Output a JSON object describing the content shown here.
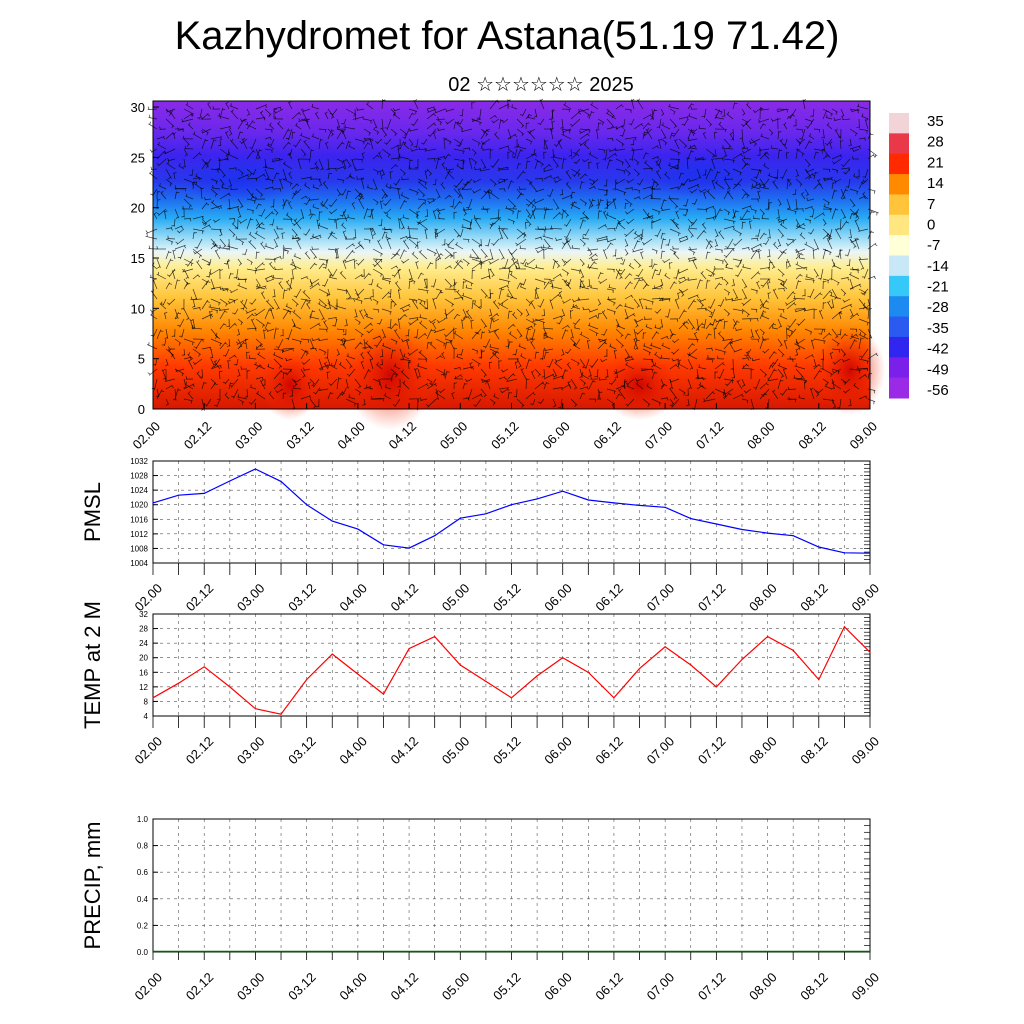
{
  "title": "Kazhydromet for Astana(51.19 71.42)",
  "subtitle": "02 ☆☆☆☆☆☆ 2025",
  "chart_data": [
    {
      "type": "heatmap",
      "description_role": "vertical cross-section of temperature with wind barbs",
      "x_tick_labels": [
        "02.00",
        "02.12",
        "03.00",
        "03.12",
        "04.00",
        "04.12",
        "05.00",
        "05.12",
        "06.00",
        "06.12",
        "07.00",
        "07.12",
        "08.00",
        "08.12",
        "09.00"
      ],
      "y_ticks": [
        0,
        5,
        10,
        15,
        20,
        25,
        30
      ],
      "ylim": [
        0,
        30.6
      ],
      "colorbar_labels": [
        "35",
        "28",
        "21",
        "14",
        "7",
        "0",
        "-7",
        "-14",
        "-21",
        "-28",
        "-35",
        "-42",
        "-49",
        "-56"
      ],
      "colorbar_colors": [
        "#f2d3d8",
        "#e8384a",
        "#ff2a00",
        "#ff8a00",
        "#ffc43a",
        "#ffe680",
        "#ffffd8",
        "#c8e8f8",
        "#35c8f8",
        "#1c8af0",
        "#2a5af0",
        "#3026f0",
        "#7a20ea",
        "#9a2ae6"
      ],
      "legend_position": "right"
    },
    {
      "type": "line",
      "ylabel": "PMSL",
      "x_tick_labels": [
        "02.00",
        "02.12",
        "03.00",
        "03.12",
        "04.00",
        "04.12",
        "05.00",
        "05.12",
        "06.00",
        "06.12",
        "07.00",
        "07.12",
        "08.00",
        "08.12",
        "09.00"
      ],
      "y_tick_labels": [
        "1004",
        "1008",
        "1012",
        "1016",
        "1020",
        "1024",
        "1028",
        "1032"
      ],
      "ylim": [
        1004,
        1032
      ],
      "x_hours": [
        0,
        6,
        12,
        18,
        24,
        30,
        36,
        42,
        48,
        54,
        60,
        66,
        72,
        78,
        84,
        90,
        96,
        102,
        108,
        114,
        120,
        126,
        132,
        138,
        144,
        150,
        156,
        162,
        168
      ],
      "values": [
        1020.5,
        1022.6,
        1023.1,
        1026.5,
        1029.8,
        1026.4,
        1020.0,
        1015.5,
        1013.3,
        1009.0,
        1008.1,
        1011.5,
        1016.3,
        1017.5,
        1020.0,
        1021.6,
        1023.7,
        1021.3,
        1020.5,
        1019.8,
        1019.3,
        1016.2,
        1014.7,
        1013.2,
        1012.2,
        1011.5,
        1008.4,
        1006.8,
        1006.7
      ],
      "color": "#0000ff"
    },
    {
      "type": "line",
      "ylabel": "TEMP at 2 M",
      "x_tick_labels": [
        "02.00",
        "02.12",
        "03.00",
        "03.12",
        "04.00",
        "04.12",
        "05.00",
        "05.12",
        "06.00",
        "06.12",
        "07.00",
        "07.12",
        "08.00",
        "08.12",
        "09.00"
      ],
      "y_tick_labels": [
        "4",
        "8",
        "12",
        "16",
        "20",
        "24",
        "28",
        "32"
      ],
      "ylim": [
        4,
        32
      ],
      "x_hours": [
        0,
        6,
        12,
        18,
        24,
        30,
        36,
        42,
        48,
        54,
        60,
        66,
        72,
        78,
        84,
        90,
        96,
        102,
        108,
        114,
        120,
        126,
        132,
        138,
        144,
        150,
        156,
        162,
        168
      ],
      "values": [
        9.0,
        13.0,
        17.5,
        12.0,
        6.0,
        4.5,
        14.0,
        21.0,
        15.5,
        10.0,
        22.5,
        25.8,
        18.0,
        13.5,
        9.0,
        15.0,
        20.0,
        16.0,
        9.0,
        17.0,
        23.0,
        18.0,
        12.0,
        19.5,
        25.8,
        22.0,
        14.0,
        28.5,
        21.5
      ],
      "color": "#ff0000"
    },
    {
      "type": "line",
      "ylabel": "PRECIP, mm",
      "x_tick_labels": [
        "02.00",
        "02.12",
        "03.00",
        "03.12",
        "04.00",
        "04.12",
        "05.00",
        "05.12",
        "06.00",
        "06.12",
        "07.00",
        "07.12",
        "08.00",
        "08.12",
        "09.00"
      ],
      "y_tick_labels": [
        "0.0",
        "0.2",
        "0.4",
        "0.6",
        "0.8",
        "1.0"
      ],
      "ylim": [
        0,
        1
      ],
      "values": [],
      "color": "#006400"
    }
  ]
}
